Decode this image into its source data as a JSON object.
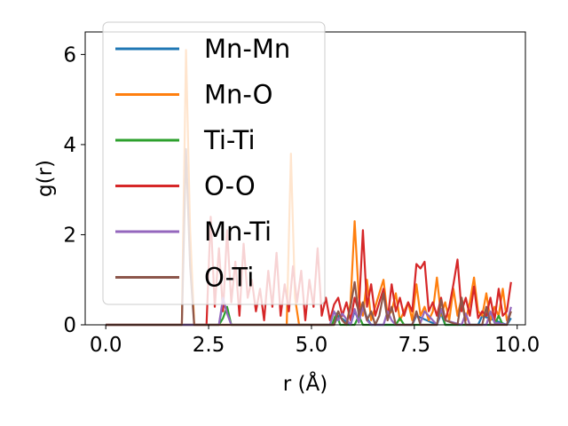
{
  "chart_data": {
    "type": "line",
    "xlabel": "r (Å)",
    "ylabel": "g(r)",
    "xlim": [
      -0.5,
      10.2
    ],
    "ylim": [
      0,
      6.5
    ],
    "xticks": [
      0.0,
      2.5,
      5.0,
      7.5,
      10.0
    ],
    "xtick_labels": [
      "0.0",
      "2.5",
      "5.0",
      "7.5",
      "10.0"
    ],
    "yticks": [
      0,
      2,
      4,
      6
    ],
    "ytick_labels": [
      "0",
      "2",
      "4",
      "6"
    ],
    "legend_position": "upper-left",
    "grid": false,
    "series": [
      {
        "name": "Mn-Mn",
        "color": "#1f77b4",
        "x": [
          0,
          2.75,
          2.85,
          2.95,
          3.05,
          5.55,
          5.65,
          5.95,
          6.05,
          6.15,
          6.25,
          6.35,
          6.45,
          7.45,
          7.55,
          8.05,
          8.15,
          8.25,
          9.05,
          9.15,
          9.75,
          9.85
        ],
        "y": [
          0,
          0,
          0.5,
          0.3,
          0,
          0,
          0.2,
          0,
          0.3,
          0.1,
          0.45,
          0.15,
          0,
          0,
          0.2,
          0,
          0.25,
          0,
          0,
          0.2,
          0,
          0.15
        ]
      },
      {
        "name": "Mn-O",
        "color": "#ff7f0e",
        "x": [
          0,
          1.85,
          1.95,
          2.05,
          2.15,
          4.4,
          4.5,
          4.6,
          4.7,
          5.55,
          5.65,
          5.75,
          5.85,
          5.95,
          6.05,
          6.15,
          6.25,
          6.35,
          6.45,
          6.55,
          6.65,
          6.75,
          6.85,
          6.95,
          7.05,
          7.15,
          7.25,
          7.35,
          7.45,
          7.55,
          7.65,
          7.75,
          7.85,
          7.95,
          8.05,
          8.15,
          8.25,
          8.35,
          8.45,
          8.55,
          8.65,
          8.75,
          8.85,
          8.95,
          9.05,
          9.15,
          9.25,
          9.35,
          9.45,
          9.55,
          9.65,
          9.75,
          9.85
        ],
        "y": [
          0,
          0,
          6.1,
          2.1,
          0,
          0,
          3.8,
          0.6,
          0,
          0,
          0.3,
          0.1,
          0,
          0.5,
          2.3,
          0.6,
          0.2,
          1.0,
          0.1,
          0.4,
          0.7,
          1.0,
          0.2,
          0.3,
          0.7,
          0.1,
          0.3,
          0.5,
          0.1,
          0.9,
          0.2,
          0.4,
          0.1,
          0.3,
          1.05,
          0.2,
          0.5,
          0.1,
          0.8,
          0.2,
          0.6,
          0.1,
          0.5,
          1.05,
          0.3,
          0.2,
          0.7,
          0.1,
          0.4,
          0.2,
          0.8,
          0.1,
          0.3
        ]
      },
      {
        "name": "Ti-Ti",
        "color": "#2ca02c",
        "x": [
          0,
          2.75,
          2.85,
          2.95,
          3.05,
          5.5,
          5.6,
          5.7,
          6.05,
          6.15,
          6.25,
          7.05,
          7.15,
          7.25,
          8.05,
          8.15,
          8.25,
          9.45,
          9.55,
          9.65
        ],
        "y": [
          0,
          0,
          0.15,
          0.4,
          0,
          0,
          0.25,
          0,
          0,
          0.2,
          0,
          0,
          0.15,
          0,
          0,
          0.35,
          0,
          0,
          0.2,
          0
        ]
      },
      {
        "name": "O-O",
        "color": "#d62728",
        "x": [
          0,
          2.45,
          2.55,
          2.65,
          2.75,
          2.85,
          2.95,
          3.05,
          3.15,
          3.25,
          3.35,
          3.45,
          3.55,
          3.65,
          3.75,
          3.85,
          3.95,
          4.05,
          4.15,
          4.25,
          4.35,
          4.45,
          4.55,
          4.65,
          4.75,
          4.85,
          4.95,
          5.05,
          5.15,
          5.25,
          5.35,
          5.45,
          5.55,
          5.65,
          5.75,
          5.85,
          5.95,
          6.05,
          6.15,
          6.25,
          6.35,
          6.45,
          6.55,
          6.65,
          6.75,
          6.85,
          6.95,
          7.05,
          7.15,
          7.25,
          7.35,
          7.45,
          7.55,
          7.65,
          7.75,
          7.85,
          7.95,
          8.05,
          8.15,
          8.25,
          8.35,
          8.45,
          8.55,
          8.65,
          8.75,
          8.85,
          8.95,
          9.05,
          9.15,
          9.25,
          9.35,
          9.45,
          9.55,
          9.65,
          9.75,
          9.85
        ],
        "y": [
          0,
          0,
          2.4,
          0.4,
          1.7,
          0.3,
          2.1,
          0.5,
          1.4,
          0.2,
          1.8,
          0.6,
          1.0,
          0.3,
          0.8,
          0.1,
          1.2,
          0.4,
          1.6,
          0.2,
          0.9,
          0.3,
          1.3,
          0.5,
          1.2,
          0.1,
          1.0,
          0.4,
          1.7,
          0.2,
          0.6,
          0.1,
          0.45,
          0.6,
          0.2,
          0.5,
          0.1,
          0.6,
          0.3,
          2.1,
          0.4,
          0.9,
          0.2,
          0.5,
          0.8,
          0.1,
          0.9,
          0.3,
          0.6,
          0.2,
          0.5,
          0.3,
          1.35,
          1.25,
          1.4,
          0.3,
          0.5,
          0.2,
          0.6,
          0.1,
          0.4,
          0.9,
          1.45,
          0.3,
          0.6,
          0.2,
          0.85,
          0.15,
          0.3,
          0.2,
          0.6,
          0.1,
          0.8,
          0.2,
          0.3,
          0.95
        ]
      },
      {
        "name": "Mn-Ti",
        "color": "#9467bd",
        "x": [
          0,
          2.75,
          2.85,
          2.95,
          3.05,
          5.45,
          5.55,
          5.65,
          5.75,
          5.95,
          6.05,
          6.15,
          6.25,
          6.35,
          6.45,
          6.75,
          6.85,
          6.95,
          7.05,
          7.45,
          7.55,
          7.65,
          7.75,
          8.05,
          8.15,
          8.25,
          8.65,
          8.75,
          8.85,
          9.25,
          9.35,
          9.45,
          9.75,
          9.85
        ],
        "y": [
          0,
          0,
          0.6,
          0.25,
          0,
          0,
          0.3,
          0.1,
          0.25,
          0,
          0.35,
          0.05,
          0.4,
          0.1,
          0,
          0,
          0.3,
          0.1,
          0,
          0,
          0.25,
          0.05,
          0.3,
          0,
          0.35,
          0.1,
          0,
          0.25,
          0,
          0,
          0.3,
          0.05,
          0,
          0.4
        ]
      },
      {
        "name": "O-Ti",
        "color": "#8c564b",
        "x": [
          0,
          1.85,
          1.95,
          2.05,
          2.15,
          5.55,
          5.65,
          5.75,
          5.85,
          5.95,
          6.05,
          6.15,
          6.25,
          6.35,
          6.45,
          6.55,
          6.65,
          6.75,
          6.85,
          6.95,
          7.05,
          7.45,
          7.55,
          7.65,
          8.05,
          8.15,
          8.25,
          8.55,
          8.65,
          8.75,
          9.15,
          9.25,
          9.35,
          9.75,
          9.85
        ],
        "y": [
          0,
          0,
          3.9,
          1.3,
          0,
          0,
          0.3,
          0.1,
          0,
          0.4,
          0.95,
          0.2,
          0.5,
          0.1,
          0.3,
          0,
          0.2,
          0.7,
          0.1,
          0.4,
          0,
          0,
          0.3,
          0,
          0,
          0.55,
          0.1,
          0,
          0.6,
          0,
          0,
          0.4,
          0,
          0,
          0.3
        ]
      }
    ]
  }
}
